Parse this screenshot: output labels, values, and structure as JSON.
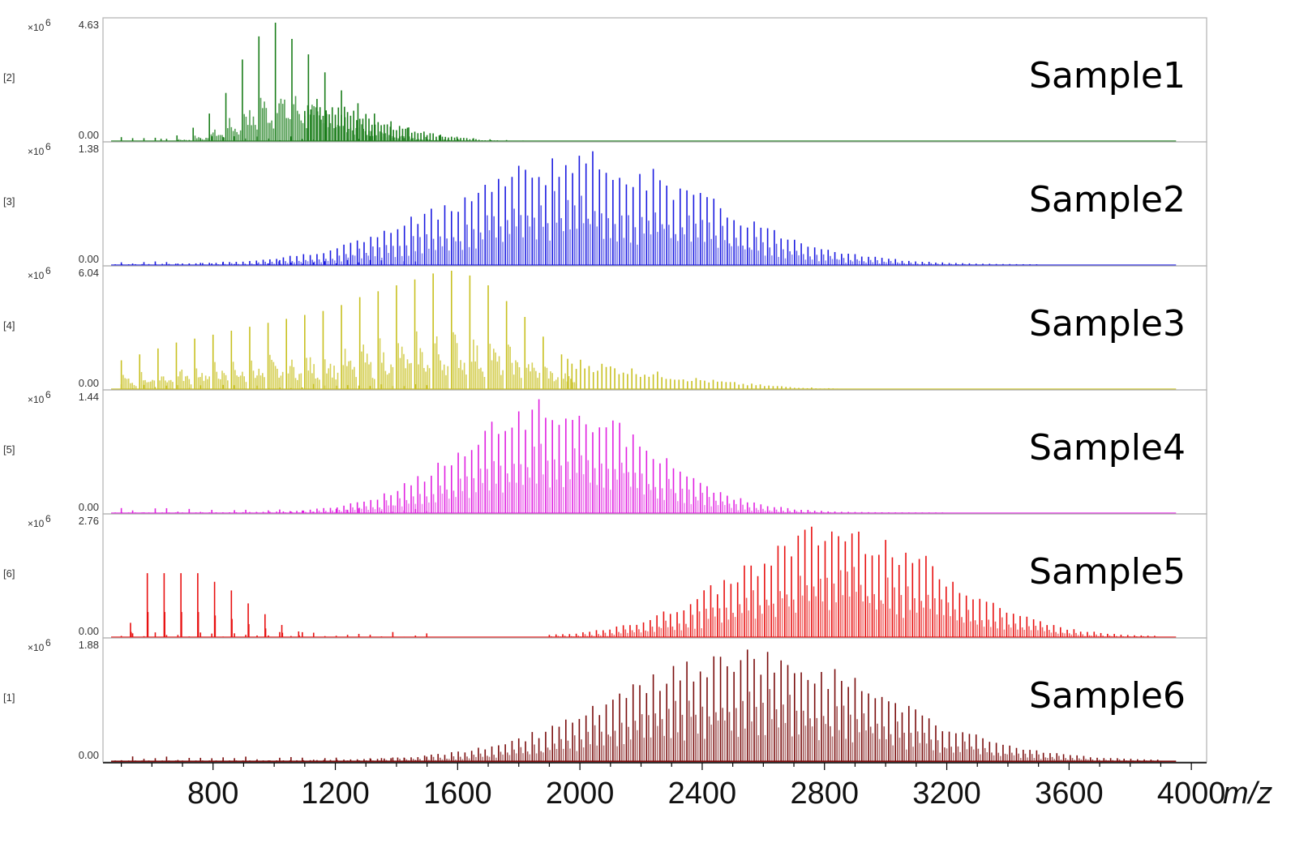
{
  "chart_data": {
    "type": "bar",
    "xlabel": "m/z",
    "xlim": [
      440,
      4050
    ],
    "x_ticks": [
      800,
      1200,
      1600,
      2000,
      2400,
      2800,
      3200,
      3600,
      4000
    ],
    "y_exponent_label": "×10",
    "y_exponent_power": "6",
    "panels": [
      {
        "index_label": "[2]",
        "name": "Sample1",
        "color": "#1a7d1a",
        "ymin_label": "0.00",
        "ymax_label": "4.63",
        "ymax": 4.63,
        "x": [
          630,
          682,
          735,
          788,
          842,
          896,
          950,
          1004,
          1058,
          1112,
          1166,
          1220,
          1274,
          1328,
          1382,
          1436,
          1490,
          1544,
          1598,
          1652,
          1706,
          1760,
          1814,
          1868,
          1922
        ],
        "values": [
          0.12,
          0.25,
          0.55,
          1.1,
          1.9,
          3.2,
          4.1,
          4.63,
          4.0,
          3.4,
          2.7,
          2.0,
          1.5,
          1.1,
          0.8,
          0.55,
          0.4,
          0.28,
          0.2,
          0.14,
          0.1,
          0.07,
          0.05,
          0.03,
          0.02
        ]
      },
      {
        "index_label": "[3]",
        "name": "Sample2",
        "color": "#1a1ae0",
        "ymin_label": "0.00",
        "ymax_label": "1.38",
        "ymax": 1.38,
        "peak_center": 2000,
        "peak_sigma": 420,
        "peak_height": 1.32,
        "peak_spacing": 22,
        "x_range": [
          480,
          3500
        ]
      },
      {
        "index_label": "[4]",
        "name": "Sample3",
        "color": "#c8c020",
        "ymin_label": "0.00",
        "ymax_label": "6.04",
        "ymax": 6.04,
        "x": [
          500,
          560,
          620,
          680,
          740,
          800,
          860,
          920,
          980,
          1040,
          1100,
          1160,
          1220,
          1280,
          1340,
          1400,
          1460,
          1520,
          1580,
          1640,
          1700,
          1760,
          1820,
          1880,
          1940
        ],
        "values": [
          1.5,
          1.8,
          2.1,
          2.4,
          2.6,
          2.8,
          3.0,
          3.2,
          3.4,
          3.6,
          3.8,
          4.0,
          4.3,
          4.7,
          5.0,
          5.3,
          5.6,
          5.9,
          6.04,
          5.8,
          5.3,
          4.5,
          3.7,
          2.7,
          1.8
        ]
      },
      {
        "index_label": "[5]",
        "name": "Sample4",
        "color": "#e020e0",
        "ymin_label": "0.00",
        "ymax_label": "1.44",
        "ymax": 1.44,
        "peak_center": 1920,
        "peak_sigma": 300,
        "peak_height": 1.4,
        "peak_spacing": 22,
        "x_range": [
          480,
          3200
        ]
      },
      {
        "index_label": "[6]",
        "name": "Sample5",
        "color": "#e81010",
        "ymin_label": "0.00",
        "ymax_label": "2.76",
        "ymax": 2.76,
        "peak_center": 2850,
        "peak_sigma": 330,
        "peak_height": 2.7,
        "peak_spacing": 22,
        "x_range": [
          1900,
          3900
        ],
        "x": [
          530,
          585,
          640,
          695,
          750,
          805,
          860,
          915,
          970,
          1025,
          1080
        ],
        "values": [
          0.35,
          1.5,
          1.5,
          1.5,
          1.5,
          1.3,
          1.1,
          0.8,
          0.55,
          0.3,
          0.15
        ]
      },
      {
        "index_label": "[1]",
        "name": "Sample6",
        "color": "#7a0d0d",
        "ymin_label": "0.00",
        "ymax_label": "1.88",
        "ymax": 1.88,
        "peak_center": 2560,
        "peak_sigma": 430,
        "peak_height": 1.8,
        "peak_spacing": 22,
        "x_range": [
          480,
          3900
        ]
      }
    ]
  }
}
